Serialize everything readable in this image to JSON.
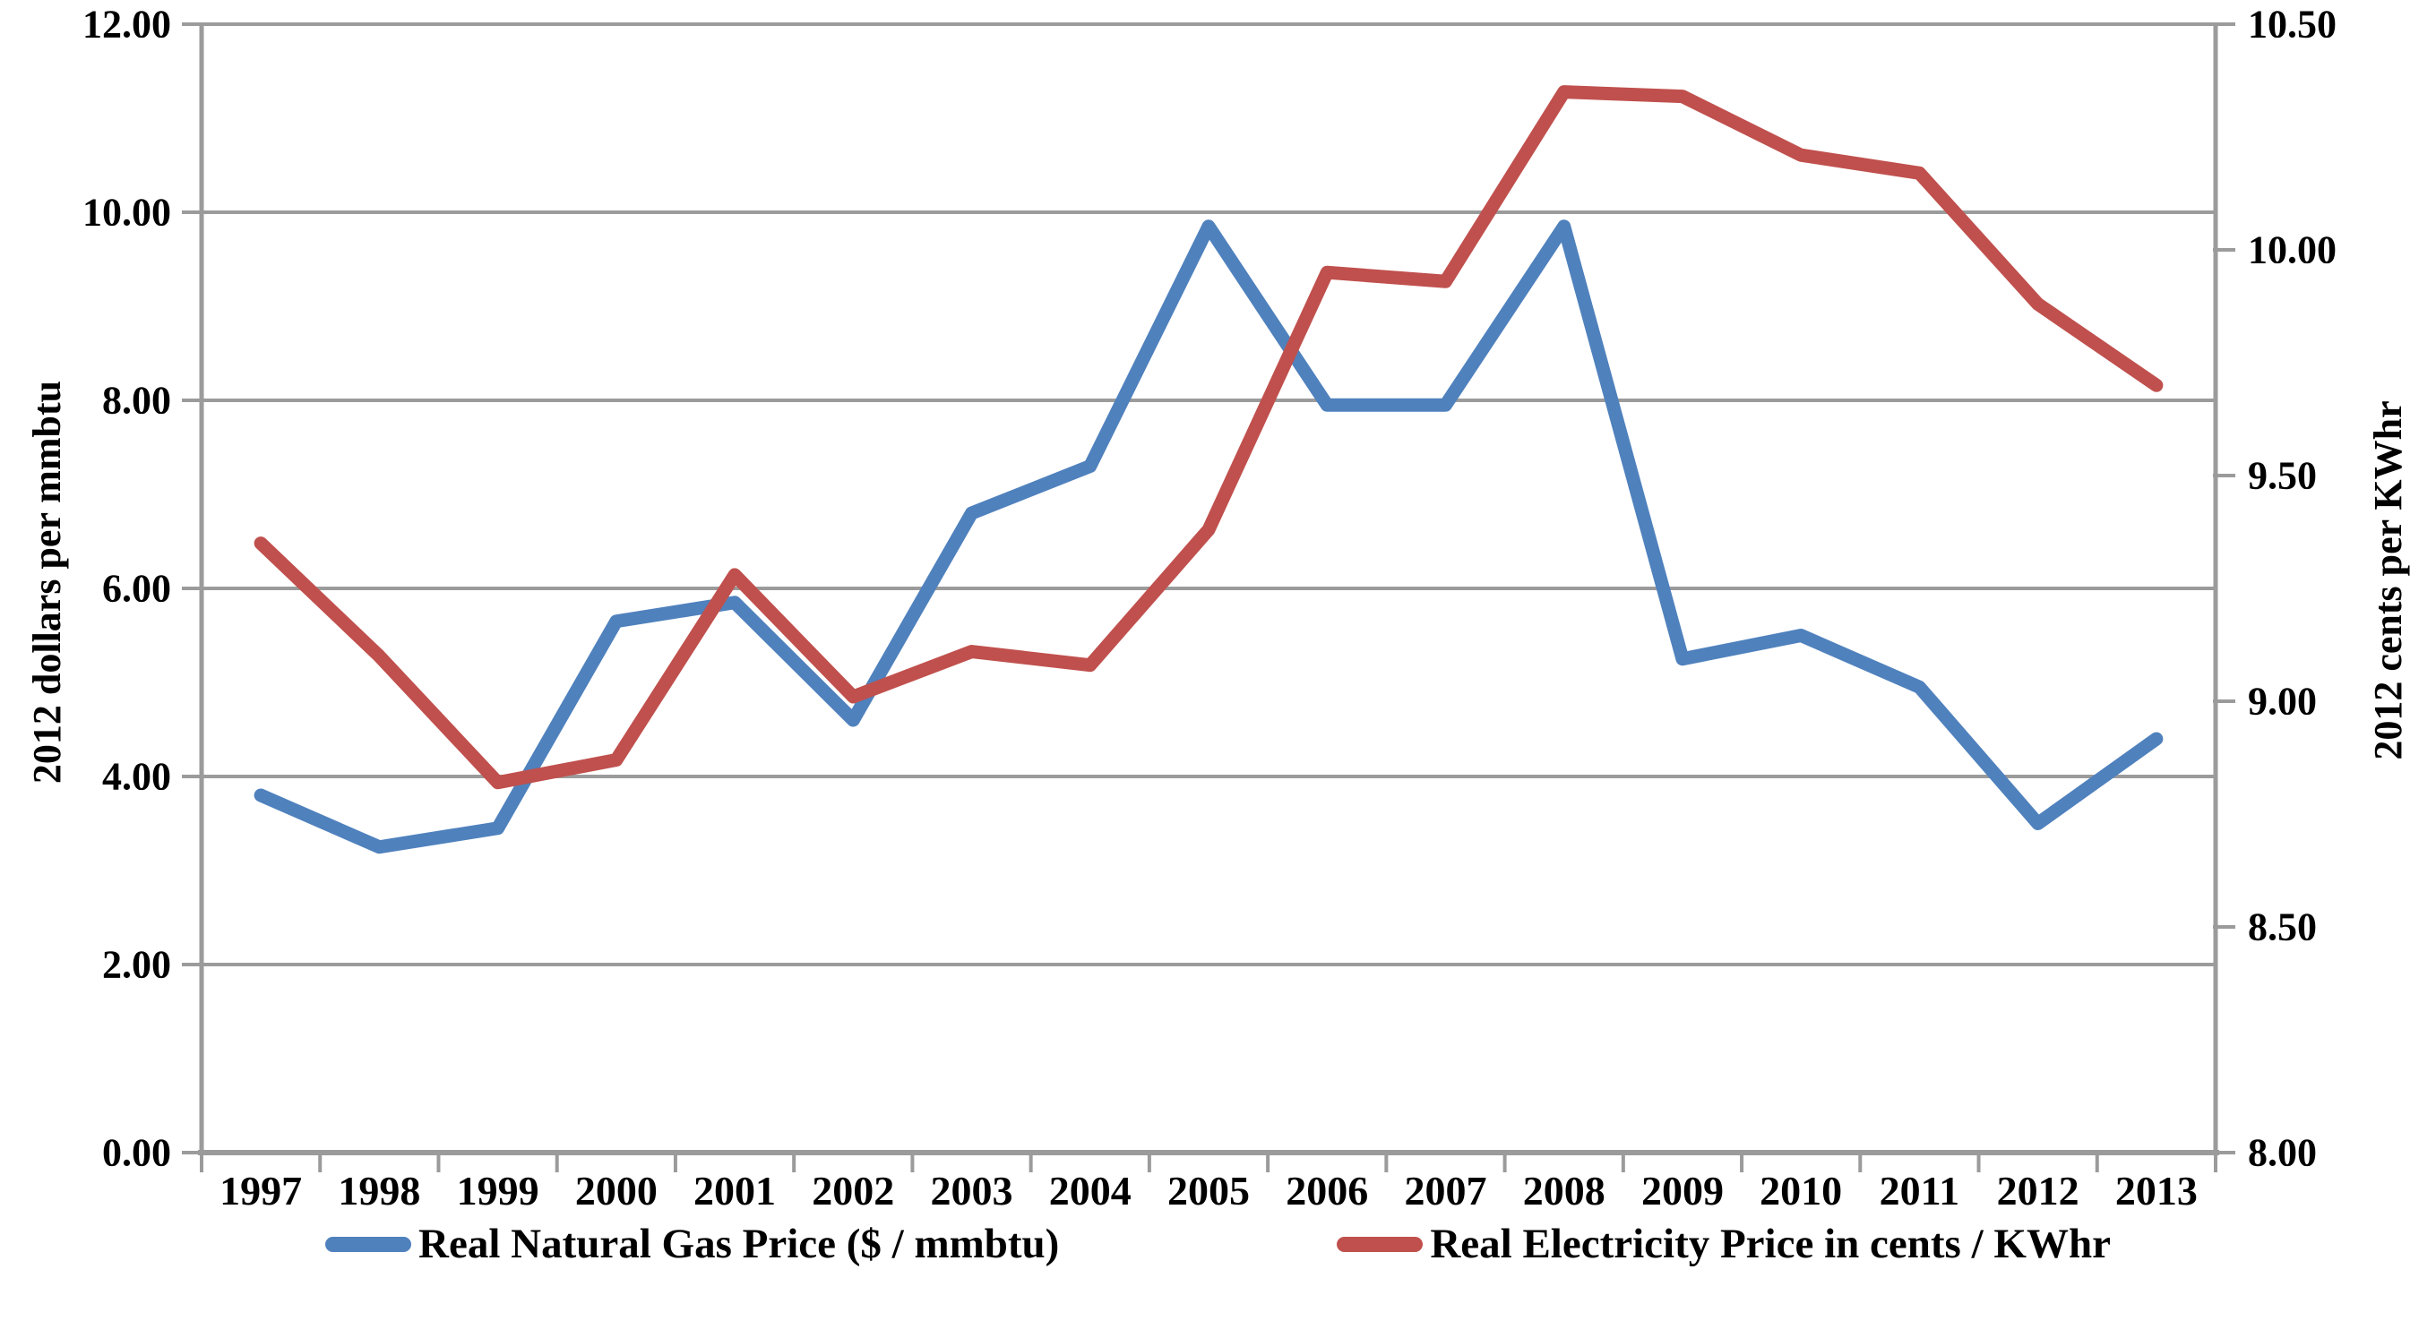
{
  "page": {
    "background": "#ffffff"
  },
  "chart_data": {
    "type": "line",
    "title": "",
    "categories": [
      "1997",
      "1998",
      "1999",
      "2000",
      "2001",
      "2002",
      "2003",
      "2004",
      "2005",
      "2006",
      "2007",
      "2008",
      "2009",
      "2010",
      "2011",
      "2012",
      "2013"
    ],
    "series": [
      {
        "name": "natural-gas",
        "legend_label": "Real Natural Gas Price ($ / mmbtu)",
        "axis": "left",
        "color": "#4f81bd",
        "values": [
          3.8,
          3.25,
          3.45,
          5.65,
          5.85,
          4.6,
          6.8,
          7.3,
          9.85,
          7.95,
          7.95,
          9.85,
          5.25,
          5.5,
          4.95,
          3.5,
          4.4
        ]
      },
      {
        "name": "electricity",
        "legend_label": "Real Electricity Price in cents / KWhr",
        "axis": "right",
        "color": "#c0504d",
        "values": [
          9.35,
          9.1,
          8.82,
          8.87,
          9.28,
          9.01,
          9.11,
          9.08,
          9.38,
          9.95,
          9.93,
          10.35,
          10.34,
          10.21,
          10.17,
          9.88,
          9.7
        ]
      }
    ],
    "left_axis": {
      "title": "2012 dollars per mmbtu",
      "min": 0,
      "max": 12,
      "tick_step": 2,
      "tick_labels": [
        "0.00",
        "2.00",
        "4.00",
        "6.00",
        "8.00",
        "10.00",
        "12.00"
      ]
    },
    "right_axis": {
      "title": "2012 cents per KWhr",
      "min": 8,
      "max": 10.5,
      "tick_step": 0.5,
      "tick_labels": [
        "8.00",
        "8.50",
        "9.00",
        "9.50",
        "10.00",
        "10.50"
      ]
    },
    "grid": {
      "horizontal": true,
      "vertical": false
    },
    "legend_position": "bottom",
    "colors": {
      "grid_line": "#9b9b9b",
      "axis_line": "#9b9b9b",
      "text": "#000000"
    },
    "line_width": 15
  }
}
